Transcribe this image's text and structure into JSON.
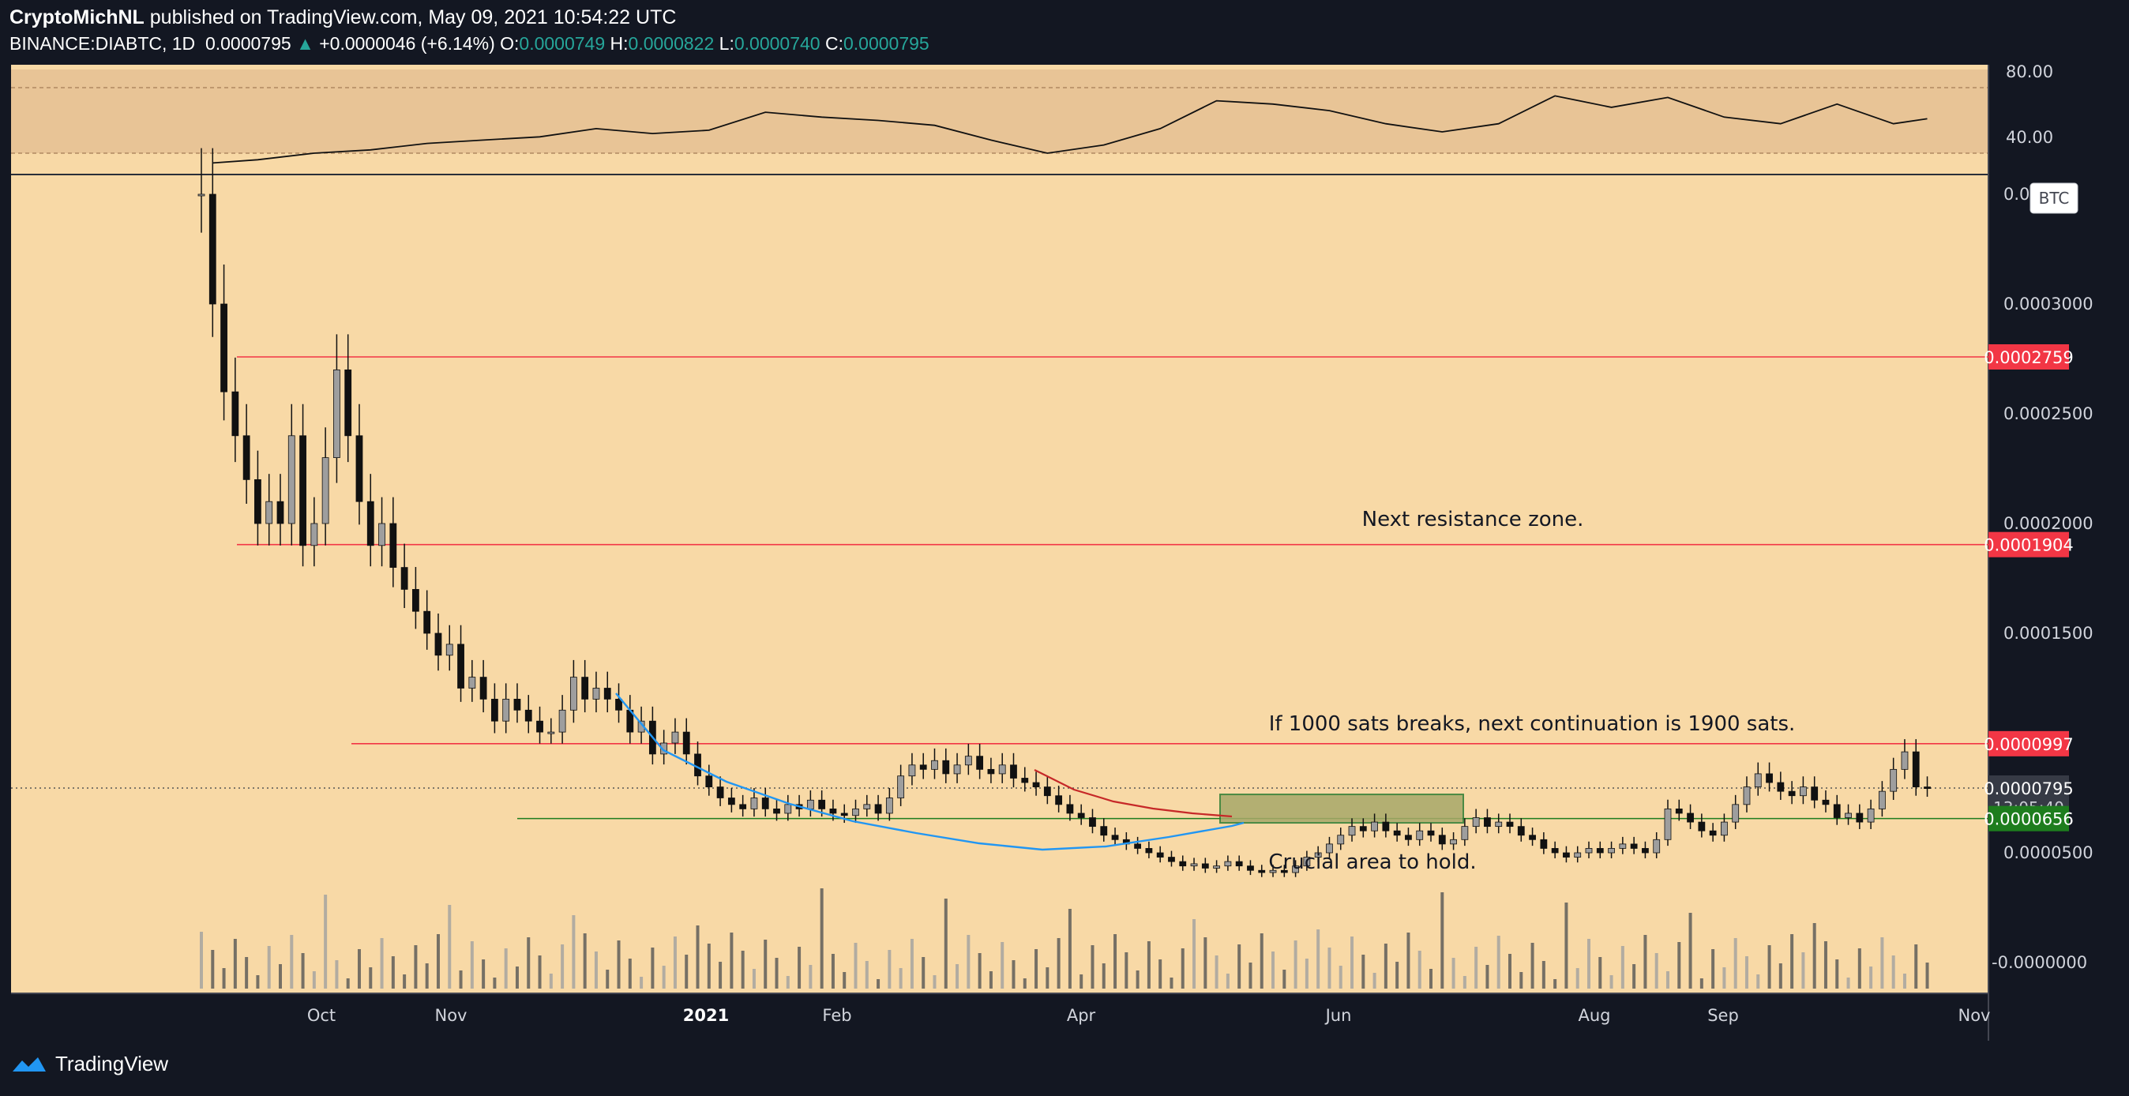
{
  "header": {
    "author": "CryptoMichNL",
    "published_text": "published on TradingView.com, May 09, 2021 10:54:22 UTC",
    "symbol": "BINANCE:DIABTC, 1D",
    "last_price": "0.0000795",
    "change": "+0.0000046 (+6.14%)",
    "open_label": "O:",
    "open": "0.0000749",
    "high_label": "H:",
    "high": "0.0000822",
    "low_label": "L:",
    "low": "0.0000740",
    "close_label": "C:",
    "close": "0.0000795"
  },
  "footer": {
    "brand": "TradingView",
    "logo_icon": "tradingview-logo-icon"
  },
  "colors": {
    "background": "#131722",
    "pane": "#f8d9a6",
    "resistance": "#f23645",
    "support": "#1e7d1e",
    "ma_blue": "#2196f3",
    "ma_red": "#c62828"
  },
  "chart_data": {
    "type": "candlestick",
    "currency_badge": "BTC",
    "x_ticks": [
      "Oct",
      "Nov",
      "2021",
      "Feb",
      "Apr",
      "Jun",
      "Aug",
      "Sep",
      "Nov"
    ],
    "y_ticks": [
      "0.0003000",
      "0.0002500",
      "0.0002000",
      "0.0001500",
      "0.0000500",
      "-0.0000000"
    ],
    "y_partial_tick": "0.0",
    "ylim": [
      -2e-05,
      0.00035
    ],
    "x_date_range": [
      "2020-09-02",
      "2021-11-15"
    ],
    "rsi": {
      "ticks": [
        "80.00",
        "40.00"
      ],
      "band": [
        30,
        70
      ],
      "ylim": [
        20,
        90
      ],
      "approx_path": [
        [
          1,
          24
        ],
        [
          5,
          26
        ],
        [
          10,
          30
        ],
        [
          15,
          32
        ],
        [
          20,
          36
        ],
        [
          25,
          38
        ],
        [
          30,
          40
        ],
        [
          35,
          45
        ],
        [
          40,
          42
        ],
        [
          45,
          44
        ],
        [
          50,
          55
        ],
        [
          55,
          52
        ],
        [
          60,
          50
        ],
        [
          65,
          47
        ],
        [
          70,
          38
        ],
        [
          75,
          30
        ],
        [
          80,
          35
        ],
        [
          85,
          45
        ],
        [
          90,
          62
        ],
        [
          95,
          60
        ],
        [
          100,
          56
        ],
        [
          105,
          48
        ],
        [
          110,
          43
        ],
        [
          115,
          48
        ],
        [
          120,
          65
        ],
        [
          125,
          58
        ],
        [
          130,
          64
        ],
        [
          135,
          52
        ],
        [
          140,
          48
        ],
        [
          145,
          60
        ],
        [
          150,
          48
        ],
        [
          153,
          51
        ]
      ]
    },
    "levels": [
      {
        "label": "0.0002759",
        "value": 0.0002759,
        "color": "#f23645"
      },
      {
        "label": "0.0001904",
        "value": 0.0001904,
        "color": "#f23645"
      },
      {
        "label": "0.0000997",
        "value": 9.97e-05,
        "color": "#f23645"
      },
      {
        "label": "0.0000656",
        "value": 6.56e-05,
        "color": "#1e7d1e"
      }
    ],
    "current_price": {
      "label": "0.0000795",
      "countdown": "13:05:40",
      "value": 7.95e-05
    },
    "support_zone": {
      "start": "2021-05-10",
      "end": "2021-06-15",
      "low": 6.1e-05,
      "high": 7.3e-05
    },
    "annotations": [
      {
        "text": "Next resistance zone."
      },
      {
        "text": "If 1000 sats breaks, next continuation is 1900 sats."
      },
      {
        "text": "Crucial area to hold."
      }
    ],
    "ohlc_approx": {
      "start_date": "2020-09-02",
      "closes": [
        0.00035,
        0.0003,
        0.00026,
        0.00024,
        0.00022,
        0.0002,
        0.00021,
        0.0002,
        0.00024,
        0.00019,
        0.0002,
        0.00023,
        0.00027,
        0.00024,
        0.00021,
        0.00019,
        0.0002,
        0.00018,
        0.00017,
        0.00016,
        0.00015,
        0.00014,
        0.000145,
        0.000125,
        0.00013,
        0.00012,
        0.00011,
        0.00012,
        0.000115,
        0.00011,
        0.000105,
        0.000105,
        0.000115,
        0.00013,
        0.00012,
        0.000125,
        0.00012,
        0.000115,
        0.000105,
        0.00011,
        9.5e-05,
        0.0001,
        0.000105,
        9.5e-05,
        8.5e-05,
        8e-05,
        7.5e-05,
        7.2e-05,
        7e-05,
        7.5e-05,
        7e-05,
        6.8e-05,
        7.2e-05,
        7e-05,
        7.4e-05,
        7e-05,
        6.8e-05,
        6.7e-05,
        7e-05,
        7.2e-05,
        6.8e-05,
        7.5e-05,
        8.5e-05,
        9e-05,
        8.8e-05,
        9.2e-05,
        8.6e-05,
        9e-05,
        9.4e-05,
        8.8e-05,
        8.6e-05,
        9e-05,
        8.4e-05,
        8.2e-05,
        8e-05,
        7.6e-05,
        7.2e-05,
        6.8e-05,
        6.6e-05,
        6.2e-05,
        5.8e-05,
        5.6e-05,
        5.4e-05,
        5.2e-05,
        5e-05,
        4.8e-05,
        4.6e-05,
        4.4e-05,
        4.5e-05,
        4.3e-05,
        4.4e-05,
        4.6e-05,
        4.4e-05,
        4.2e-05,
        4.1e-05,
        4.2e-05,
        4.1e-05,
        4.4e-05,
        4.8e-05,
        5e-05,
        5.4e-05,
        5.8e-05,
        6.2e-05,
        6e-05,
        6.4e-05,
        6e-05,
        5.8e-05,
        5.6e-05,
        6e-05,
        5.8e-05,
        5.4e-05,
        5.6e-05,
        6.2e-05,
        6.6e-05,
        6.2e-05,
        6.4e-05,
        6.2e-05,
        5.8e-05,
        5.6e-05,
        5.2e-05,
        5e-05,
        4.8e-05,
        5e-05,
        5.2e-05,
        5e-05,
        5.2e-05,
        5.4e-05,
        5.2e-05,
        5e-05,
        5.6e-05,
        7e-05,
        6.8e-05,
        6.4e-05,
        6e-05,
        5.8e-05,
        6.4e-05,
        7.2e-05,
        8e-05,
        8.6e-05,
        8.2e-05,
        7.8e-05,
        7.6e-05,
        8e-05,
        7.4e-05,
        7.2e-05,
        6.6e-05,
        6.8e-05,
        6.4e-05,
        7e-05,
        7.8e-05,
        8.8e-05,
        9.6e-05,
        8e-05,
        7.95e-05
      ]
    }
  }
}
